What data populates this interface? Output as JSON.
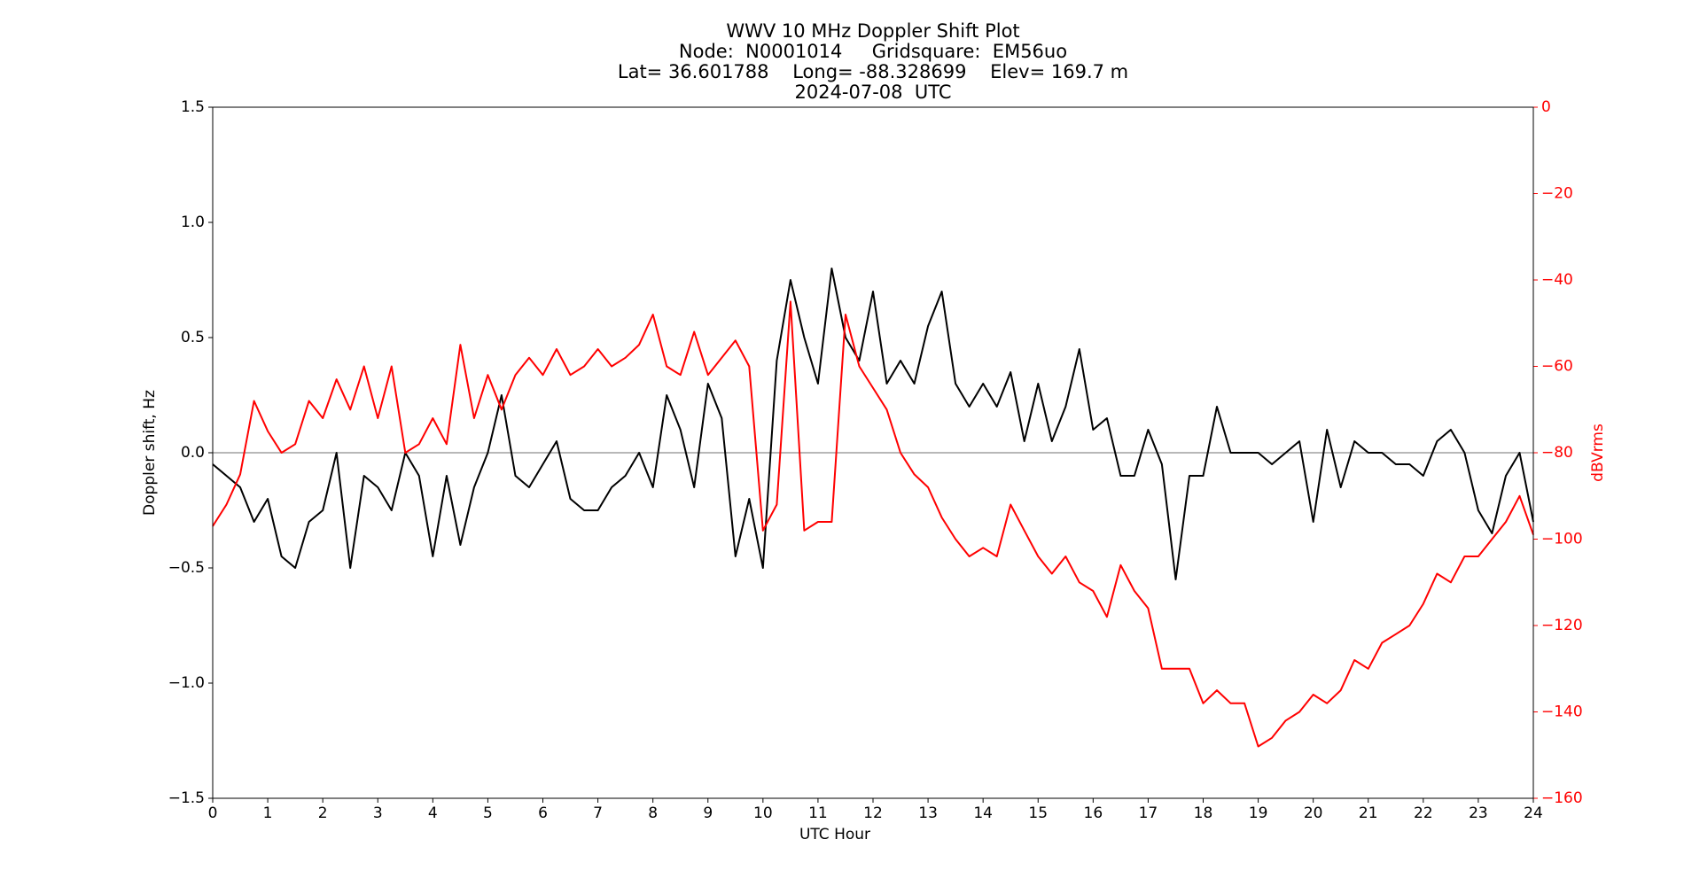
{
  "chart_data": {
    "type": "line",
    "title": [
      "WWV 10 MHz Doppler Shift Plot",
      "Node:  N0001014     Gridsquare:  EM56uo",
      "Lat= 36.601788    Long= -88.328699    Elev= 169.7 m",
      "2024-07-08  UTC"
    ],
    "xlabel": "UTC Hour",
    "ylabel": "Doppler shift, Hz",
    "y2label": "dBVrms",
    "xlim": [
      0,
      24
    ],
    "xticks": [
      0,
      1,
      2,
      3,
      4,
      5,
      6,
      7,
      8,
      9,
      10,
      11,
      12,
      13,
      14,
      15,
      16,
      17,
      18,
      19,
      20,
      21,
      22,
      23,
      24
    ],
    "ylim": [
      -1.5,
      1.5
    ],
    "yticks": [
      {
        "value": -1.5,
        "label": "−1.5"
      },
      {
        "value": -1,
        "label": "−1.0"
      },
      {
        "value": -0.5,
        "label": "−0.5"
      },
      {
        "value": 0,
        "label": "0.0"
      },
      {
        "value": 0.5,
        "label": "0.5"
      },
      {
        "value": 1,
        "label": "1.0"
      },
      {
        "value": 1.5,
        "label": "1.5"
      }
    ],
    "y2lim": [
      -160,
      0
    ],
    "y2ticks": [
      {
        "value": -160,
        "label": "−160"
      },
      {
        "value": -140,
        "label": "−140"
      },
      {
        "value": -120,
        "label": "−120"
      },
      {
        "value": -100,
        "label": "−100"
      },
      {
        "value": -80,
        "label": "−80"
      },
      {
        "value": -60,
        "label": "−60"
      },
      {
        "value": -40,
        "label": "−40"
      },
      {
        "value": -20,
        "label": "−20"
      },
      0
    ],
    "reference_line": 0,
    "reference_color": "#a0a0a0",
    "y2_color": "#ff0000",
    "x": [
      0,
      0.25,
      0.5,
      0.75,
      1,
      1.25,
      1.5,
      1.75,
      2,
      2.25,
      2.5,
      2.75,
      3,
      3.25,
      3.5,
      3.75,
      4,
      4.25,
      4.5,
      4.75,
      5,
      5.25,
      5.5,
      5.75,
      6,
      6.25,
      6.5,
      6.75,
      7,
      7.25,
      7.5,
      7.75,
      8,
      8.25,
      8.5,
      8.75,
      9,
      9.25,
      9.5,
      9.75,
      10,
      10.25,
      10.5,
      10.75,
      11,
      11.25,
      11.5,
      11.75,
      12,
      12.25,
      12.5,
      12.75,
      13,
      13.25,
      13.5,
      13.75,
      14,
      14.25,
      14.5,
      14.75,
      15,
      15.25,
      15.5,
      15.75,
      16,
      16.25,
      16.5,
      16.75,
      17,
      17.25,
      17.5,
      17.75,
      18,
      18.25,
      18.5,
      18.75,
      19,
      19.25,
      19.5,
      19.75,
      20,
      20.25,
      20.5,
      20.75,
      21,
      21.25,
      21.5,
      21.75,
      22,
      22.25,
      22.5,
      22.75,
      23,
      23.25,
      23.5,
      23.75,
      24
    ],
    "series": [
      {
        "color": "#000000",
        "values": [
          -0.05,
          -0.1,
          -0.15,
          -0.3,
          -0.2,
          -0.45,
          -0.5,
          -0.3,
          -0.25,
          0.0,
          -0.5,
          -0.1,
          -0.15,
          -0.25,
          0.0,
          -0.1,
          -0.45,
          -0.1,
          -0.4,
          -0.15,
          0.0,
          0.25,
          -0.1,
          -0.15,
          -0.05,
          0.05,
          -0.2,
          -0.25,
          -0.25,
          -0.15,
          -0.1,
          0.0,
          -0.15,
          0.25,
          0.1,
          -0.15,
          0.3,
          0.15,
          -0.45,
          -0.2,
          -0.5,
          0.4,
          0.75,
          0.5,
          0.3,
          0.8,
          0.5,
          0.4,
          0.7,
          0.3,
          0.4,
          0.3,
          0.55,
          0.7,
          0.3,
          0.2,
          0.3,
          0.2,
          0.35,
          0.05,
          0.3,
          0.05,
          0.2,
          0.45,
          0.1,
          0.15,
          -0.1,
          -0.1,
          0.1,
          -0.05,
          -0.55,
          -0.1,
          -0.1,
          0.2,
          0.0,
          0.0,
          0.0,
          -0.05,
          0.0,
          0.05,
          -0.3,
          0.1,
          -0.15,
          0.05,
          0.0,
          0.0,
          -0.05,
          -0.05,
          -0.1,
          0.05,
          0.1,
          0.0,
          -0.25,
          -0.35,
          -0.1,
          0.0,
          -0.3
        ]
      },
      {
        "color": "#ff0000",
        "axis": "y2",
        "values": [
          -97,
          -92,
          -85,
          -68,
          -75,
          -80,
          -78,
          -68,
          -72,
          -63,
          -70,
          -60,
          -72,
          -60,
          -80,
          -78,
          -72,
          -78,
          -55,
          -72,
          -62,
          -70,
          -62,
          -58,
          -62,
          -56,
          -62,
          -60,
          -56,
          -60,
          -58,
          -55,
          -48,
          -60,
          -62,
          -52,
          -62,
          -58,
          -54,
          -60,
          -98,
          -92,
          -45,
          -98,
          -96,
          -96,
          -48,
          -60,
          -65,
          -70,
          -80,
          -85,
          -88,
          -95,
          -100,
          -104,
          -102,
          -104,
          -92,
          -98,
          -104,
          -108,
          -104,
          -110,
          -112,
          -118,
          -106,
          -112,
          -116,
          -130,
          -130,
          -130,
          -138,
          -135,
          -138,
          -138,
          -148,
          -146,
          -142,
          -140,
          -136,
          -138,
          -135,
          -128,
          -130,
          -124,
          -122,
          -120,
          -115,
          -108,
          -110,
          -104,
          -104,
          -100,
          -96,
          -90,
          -99
        ]
      }
    ]
  }
}
